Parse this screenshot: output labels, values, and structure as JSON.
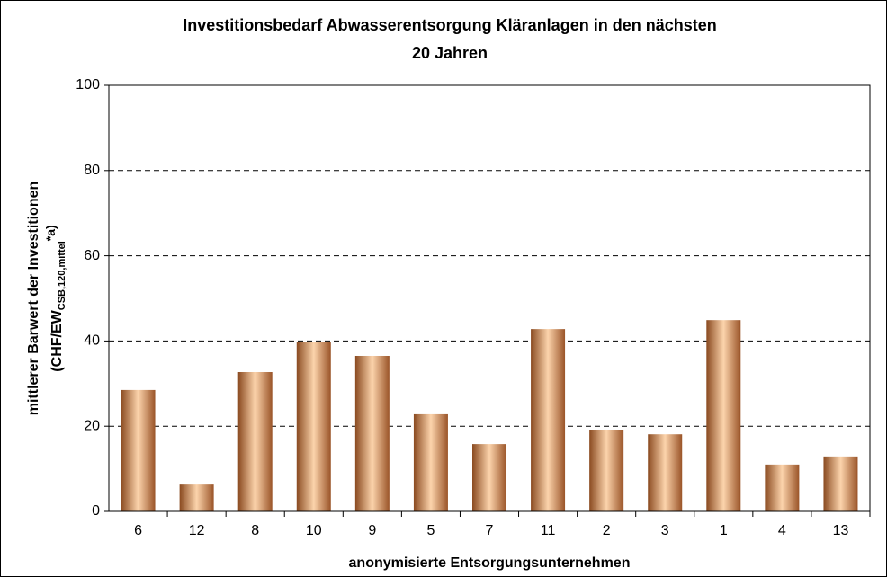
{
  "chart_data": {
    "type": "bar",
    "title": [
      "Investitionsbedarf Abwasserentsorgung Kläranlagen in den nächsten",
      "20 Jahren"
    ],
    "xlabel": "anonymisierte Entsorgungsunternehmen",
    "ylabel": [
      "mittlerer Barwert der Investitionen",
      "(CHF/EW",
      "CSB,120,mittel",
      "*a)"
    ],
    "categories": [
      "6",
      "12",
      "8",
      "10",
      "9",
      "5",
      "7",
      "11",
      "2",
      "3",
      "1",
      "4",
      "13"
    ],
    "values": [
      28.5,
      6.3,
      32.7,
      39.7,
      36.5,
      22.8,
      15.8,
      42.8,
      19.2,
      18.1,
      44.9,
      11.0,
      12.9
    ],
    "color": "#d9956a",
    "ylim": [
      0,
      100
    ],
    "yticks": [
      0,
      20,
      40,
      60,
      80,
      100
    ],
    "grid": true
  }
}
